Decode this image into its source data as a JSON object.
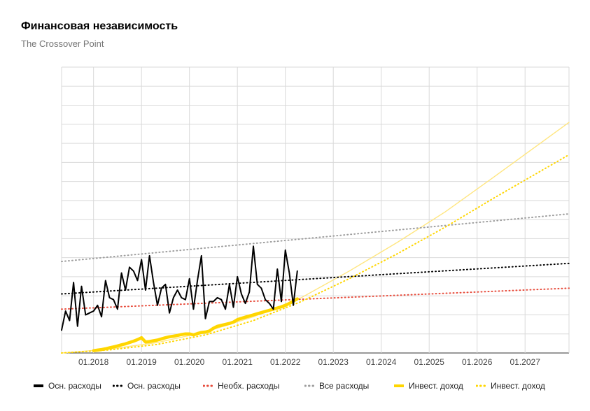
{
  "chart_data": {
    "type": "line",
    "title": "Финансовая независимость",
    "subtitle": "The Crossover Point",
    "xlabel": "",
    "ylabel": "",
    "x_range": [
      "2017-05",
      "2027-12"
    ],
    "y_range": [
      0,
      15
    ],
    "x_tick_labels": [
      "01.2018",
      "01.2019",
      "01.2020",
      "01.2021",
      "01.2022",
      "01.2023",
      "01.2024",
      "01.2025",
      "01.2026",
      "01.2027"
    ],
    "y_tick_labels_shown": false,
    "grid": true,
    "legend_position": "bottom",
    "series": [
      {
        "name": "Осн. расходы",
        "style": "solid",
        "color": "#000000",
        "x": [
          "2017-05",
          "2017-06",
          "2017-07",
          "2017-08",
          "2017-09",
          "2017-10",
          "2017-11",
          "2017-12",
          "2018-01",
          "2018-02",
          "2018-03",
          "2018-04",
          "2018-05",
          "2018-06",
          "2018-07",
          "2018-08",
          "2018-09",
          "2018-10",
          "2018-11",
          "2018-12",
          "2019-01",
          "2019-02",
          "2019-03",
          "2019-04",
          "2019-05",
          "2019-06",
          "2019-07",
          "2019-08",
          "2019-09",
          "2019-10",
          "2019-11",
          "2019-12",
          "2020-01",
          "2020-02",
          "2020-03",
          "2020-04",
          "2020-05",
          "2020-06",
          "2020-07",
          "2020-08",
          "2020-09",
          "2020-10",
          "2020-11",
          "2020-12",
          "2021-01",
          "2021-02",
          "2021-03",
          "2021-04",
          "2021-05",
          "2021-06",
          "2021-07",
          "2021-08",
          "2021-09",
          "2021-10",
          "2021-11",
          "2021-12",
          "2022-01",
          "2022-02",
          "2022-03",
          "2022-04"
        ],
        "y": [
          1.2,
          2.2,
          1.7,
          3.7,
          1.4,
          3.5,
          2.0,
          2.1,
          2.2,
          2.5,
          1.9,
          3.8,
          2.9,
          2.8,
          2.3,
          4.2,
          3.3,
          4.5,
          4.3,
          3.8,
          4.9,
          3.3,
          5.1,
          3.7,
          2.5,
          3.4,
          3.6,
          2.1,
          2.9,
          3.3,
          2.9,
          2.8,
          3.9,
          2.3,
          3.8,
          5.1,
          1.8,
          2.7,
          2.7,
          2.9,
          2.8,
          2.3,
          3.6,
          2.4,
          4.0,
          3.1,
          2.6,
          3.2,
          5.6,
          3.6,
          3.4,
          2.8,
          2.6,
          2.3,
          4.4,
          2.7,
          5.4,
          4.2,
          2.5,
          4.3
        ]
      },
      {
        "name": "Осн. расходы",
        "style": "dotted",
        "color": "#000000",
        "trend": [
          [
            "2017-05",
            3.1
          ],
          [
            "2027-12",
            4.7
          ]
        ]
      },
      {
        "name": "Необх. расходы",
        "style": "dotted",
        "color": "#e74c3c",
        "trend": [
          [
            "2017-05",
            2.3
          ],
          [
            "2027-12",
            3.4
          ]
        ]
      },
      {
        "name": "Все расходы",
        "style": "dotted",
        "color": "#9e9e9e",
        "trend": [
          [
            "2017-05",
            4.8
          ],
          [
            "2027-12",
            7.3
          ]
        ]
      },
      {
        "name": "Инвест. доход",
        "style": "solid-thick",
        "color": "#ffd600",
        "x": [
          "2018-01",
          "2018-02",
          "2018-03",
          "2018-04",
          "2018-05",
          "2018-06",
          "2018-07",
          "2018-08",
          "2018-09",
          "2018-10",
          "2018-11",
          "2018-12",
          "2019-01",
          "2019-02",
          "2019-03",
          "2019-04",
          "2019-05",
          "2019-06",
          "2019-07",
          "2019-08",
          "2019-09",
          "2019-10",
          "2019-11",
          "2019-12",
          "2020-01",
          "2020-02",
          "2020-03",
          "2020-04",
          "2020-05",
          "2020-06",
          "2020-07",
          "2020-08",
          "2020-09",
          "2020-10",
          "2020-11",
          "2020-12",
          "2021-01",
          "2021-02",
          "2021-03",
          "2021-04",
          "2021-05",
          "2021-06",
          "2021-07",
          "2021-08",
          "2021-09",
          "2021-10",
          "2021-11",
          "2021-12",
          "2022-01",
          "2022-02",
          "2022-03",
          "2022-04"
        ],
        "y": [
          0.12,
          0.15,
          0.18,
          0.22,
          0.27,
          0.32,
          0.37,
          0.43,
          0.48,
          0.55,
          0.62,
          0.7,
          0.8,
          0.58,
          0.6,
          0.64,
          0.68,
          0.74,
          0.8,
          0.85,
          0.88,
          0.92,
          0.97,
          1.0,
          1.0,
          0.95,
          1.02,
          1.08,
          1.1,
          1.15,
          1.3,
          1.4,
          1.45,
          1.5,
          1.55,
          1.62,
          1.75,
          1.82,
          1.88,
          1.94,
          2.0,
          2.06,
          2.12,
          2.18,
          2.24,
          2.3,
          2.36,
          2.42,
          2.5,
          2.6,
          2.72,
          2.84
        ]
      },
      {
        "name": "Инвест. доход",
        "style": "dotted",
        "color": "#ffd600",
        "trend": "curve",
        "x": [
          "2017-05",
          "2018-05",
          "2019-05",
          "2020-05",
          "2021-05",
          "2022-05",
          "2023-05",
          "2024-05",
          "2025-05",
          "2026-05",
          "2027-12"
        ],
        "y": [
          0.0,
          0.16,
          0.45,
          0.95,
          1.7,
          2.7,
          3.9,
          5.2,
          6.6,
          8.1,
          10.4
        ]
      },
      {
        "name": "",
        "style": "thin-projection",
        "color": "#ffe680",
        "x": [
          "2017-05",
          "2018-05",
          "2019-05",
          "2020-05",
          "2021-05",
          "2022-05",
          "2023-05",
          "2024-05",
          "2025-05",
          "2026-05",
          "2027-12"
        ],
        "y": [
          0.0,
          0.2,
          0.55,
          1.1,
          1.9,
          2.9,
          4.3,
          5.8,
          7.4,
          9.2,
          12.1
        ]
      }
    ],
    "legend": [
      {
        "label": "Осн. расходы",
        "color": "#000000",
        "style": "solid"
      },
      {
        "label": "Осн. расходы",
        "color": "#000000",
        "style": "dotted"
      },
      {
        "label": "Необх. расходы",
        "color": "#e74c3c",
        "style": "dotted"
      },
      {
        "label": "Все расходы",
        "color": "#9e9e9e",
        "style": "dotted"
      },
      {
        "label": "Инвест. доход",
        "color": "#ffd600",
        "style": "solid"
      },
      {
        "label": "Инвест. доход",
        "color": "#ffd600",
        "style": "dotted"
      }
    ]
  }
}
